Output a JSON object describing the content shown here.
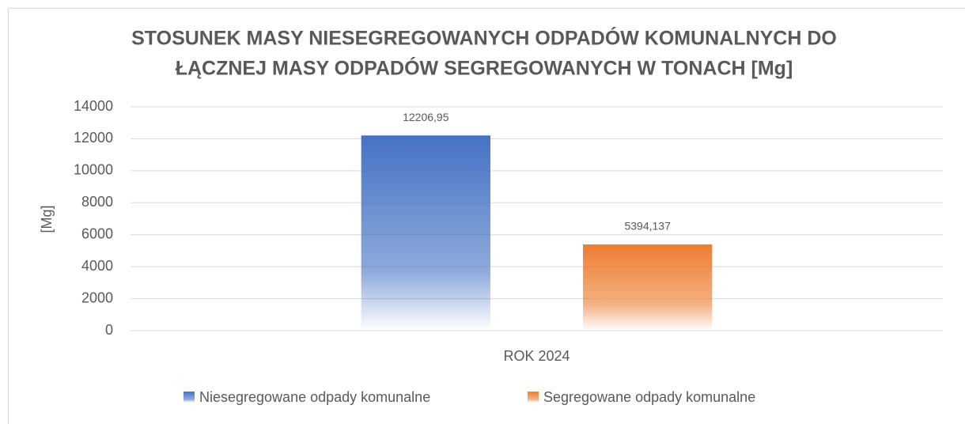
{
  "chart_data": {
    "type": "bar",
    "title": [
      "STOSUNEK MASY NIESEGREGOWANYCH ODPADÓW KOMUNALNYCH DO",
      "ŁĄCZNEJ MASY ODPADÓW SEGREGOWANYCH W TONACH [Mg]"
    ],
    "y_label": "[Mg]",
    "categories": [
      "ROK 2024"
    ],
    "series": [
      {
        "name": "Niesegregowane odpady komunalne",
        "color": "#4472c4",
        "values": [
          12206.95
        ],
        "value_labels": [
          "12206,95"
        ]
      },
      {
        "name": "Segregowane odpady komunalne",
        "color": "#ed7d31",
        "values": [
          5394.137
        ],
        "value_labels": [
          "5394,137"
        ]
      }
    ],
    "ylim": [
      0,
      14000
    ],
    "yticks": [
      0,
      2000,
      4000,
      6000,
      8000,
      10000,
      12000,
      14000
    ],
    "grid": true,
    "legend": "bottom"
  }
}
